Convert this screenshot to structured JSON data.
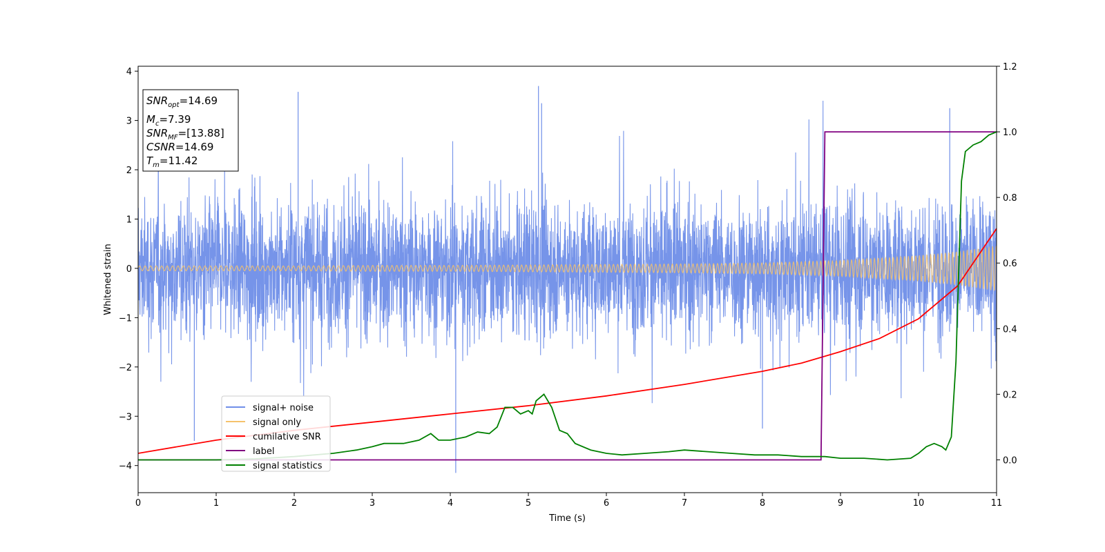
{
  "chart_data": {
    "type": "line",
    "xlabel": "Time (s)",
    "ylabel": "Whitened strain",
    "xlim": [
      0,
      11
    ],
    "ylim_left": [
      -4.55,
      4.1
    ],
    "ylim_right": [
      -0.1,
      1.2
    ],
    "xticks": [
      "0",
      "1",
      "2",
      "3",
      "4",
      "5",
      "6",
      "7",
      "8",
      "9",
      "10",
      "11"
    ],
    "yticks_left": [
      "−4",
      "−3",
      "−2",
      "−1",
      "0",
      "1",
      "2",
      "3",
      "4"
    ],
    "yticks_right": [
      "0.0",
      "0.2",
      "0.4",
      "0.6",
      "0.8",
      "1.0",
      "1.2"
    ],
    "info_box": {
      "snr_opt": "=14.69",
      "mc": "=7.39",
      "snr_mf": "=[13.88]",
      "csnr": "=14.69",
      "tm": "=11.42"
    },
    "legend_placement": "lower-left",
    "series": [
      {
        "name": "signal+ noise",
        "color": "#6f8ee8",
        "axis": "left",
        "description_values": {
          "x_range": [
            0,
            11
          ],
          "envelope_typical": 2.3,
          "peak_max": 3.7,
          "peak_min": -4.15
        }
      },
      {
        "name": "signal only",
        "color": "#f5c26b",
        "axis": "left",
        "x": [
          0,
          1,
          2,
          3,
          4,
          5,
          6,
          7,
          8,
          9,
          10,
          10.5,
          11
        ],
        "amplitude": [
          0.05,
          0.05,
          0.05,
          0.06,
          0.06,
          0.07,
          0.08,
          0.09,
          0.11,
          0.16,
          0.26,
          0.34,
          0.46
        ]
      },
      {
        "name": "cumilative SNR",
        "color": "#ff0000",
        "axis": "right",
        "x": [
          0,
          1,
          2,
          3,
          4,
          5,
          6,
          7,
          8,
          8.5,
          9,
          9.5,
          10,
          10.5,
          11
        ],
        "y": [
          0.02,
          0.06,
          0.09,
          0.115,
          0.14,
          0.165,
          0.195,
          0.23,
          0.27,
          0.295,
          0.33,
          0.37,
          0.43,
          0.53,
          0.705
        ]
      },
      {
        "name": "label",
        "color": "#800080",
        "axis": "right",
        "x": [
          0,
          8.75,
          8.8,
          11
        ],
        "y": [
          0,
          0,
          1,
          1
        ]
      },
      {
        "name": "signal statistics",
        "color": "#008000",
        "axis": "right",
        "x": [
          0,
          1,
          1.5,
          2,
          2.5,
          2.8,
          3.0,
          3.15,
          3.25,
          3.4,
          3.6,
          3.75,
          3.85,
          4.0,
          4.2,
          4.35,
          4.5,
          4.6,
          4.7,
          4.8,
          4.9,
          5.0,
          5.05,
          5.1,
          5.2,
          5.3,
          5.4,
          5.5,
          5.6,
          5.8,
          6.0,
          6.2,
          6.5,
          6.8,
          7.0,
          7.3,
          7.6,
          7.9,
          8.2,
          8.5,
          8.8,
          9.0,
          9.3,
          9.6,
          9.9,
          10.0,
          10.1,
          10.2,
          10.3,
          10.35,
          10.42,
          10.48,
          10.55,
          10.6,
          10.7,
          10.8,
          10.9,
          11.0
        ],
        "y": [
          0.0,
          0.0,
          0.003,
          0.01,
          0.02,
          0.03,
          0.04,
          0.05,
          0.05,
          0.05,
          0.06,
          0.08,
          0.06,
          0.06,
          0.07,
          0.085,
          0.08,
          0.1,
          0.16,
          0.16,
          0.14,
          0.15,
          0.14,
          0.18,
          0.2,
          0.16,
          0.09,
          0.08,
          0.05,
          0.03,
          0.02,
          0.015,
          0.02,
          0.025,
          0.03,
          0.025,
          0.02,
          0.015,
          0.015,
          0.01,
          0.01,
          0.005,
          0.005,
          0.0,
          0.005,
          0.02,
          0.04,
          0.05,
          0.04,
          0.03,
          0.07,
          0.3,
          0.85,
          0.94,
          0.96,
          0.97,
          0.99,
          1.0
        ]
      }
    ]
  }
}
